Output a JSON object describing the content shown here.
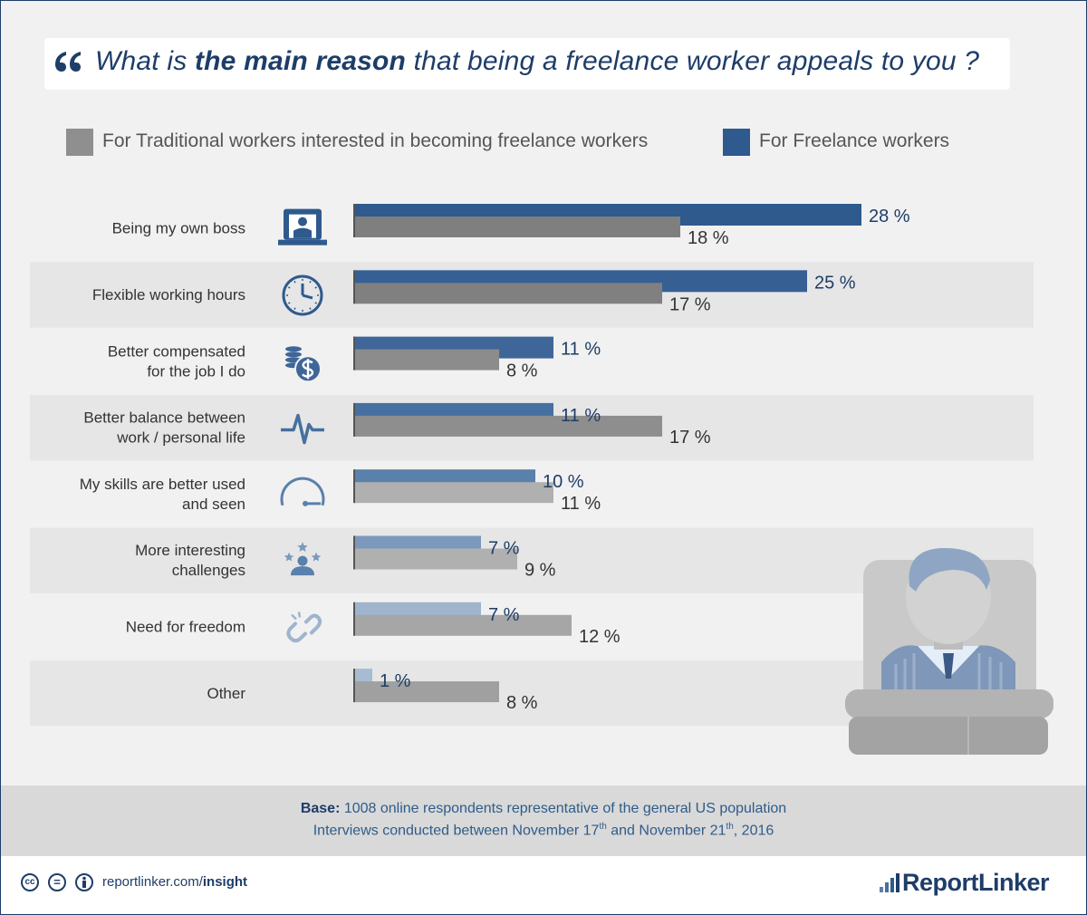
{
  "title": {
    "pre": "What is ",
    "bold": "the main reason",
    "post": " that being a freelance worker appeals to you ?"
  },
  "legend": {
    "traditional": "For Traditional workers interested in becoming freelance workers",
    "freelance": "For Freelance workers"
  },
  "colors": {
    "title": "#1e3d68",
    "row_band": "#e6e6e6",
    "freelance_shades": [
      "#2e5a8e",
      "#365f94",
      "#3f6699",
      "#46709f",
      "#5a80ac",
      "#7b98bd",
      "#9fb4cd",
      "#a7bbd2"
    ],
    "traditional_shades": [
      "#7f7f7f",
      "#808080",
      "#8c8c8c",
      "#8e8e8e",
      "#b0b0b0",
      "#b0b0b0",
      "#a6a6a6",
      "#a0a0a0"
    ]
  },
  "chart_data": {
    "type": "bar",
    "orientation": "horizontal",
    "categories": [
      "Being my own boss",
      "Flexible working hours",
      "Better compensated\nfor the job I do",
      "Better balance between\nwork / personal life ",
      "My skills are better used\nand seen",
      "More interesting\nchallenges",
      "Need for freedom",
      "Other"
    ],
    "category_icons": [
      "desk-boss-icon",
      "clock-icon",
      "coins-dollar-icon",
      "heartbeat-icon",
      "gauge-icon",
      "stars-person-icon",
      "broken-chain-icon",
      ""
    ],
    "series": [
      {
        "name": "For Freelance workers",
        "values": [
          28,
          25,
          11,
          11,
          10,
          7,
          7,
          1
        ]
      },
      {
        "name": "For Traditional workers interested in becoming freelance workers",
        "values": [
          18,
          17,
          8,
          17,
          11,
          9,
          12,
          8
        ]
      }
    ],
    "value_suffix": " %",
    "xlim": [
      0,
      28
    ]
  },
  "base": {
    "label": "Base:",
    "text": " 1008 online respondents representative of the general US population",
    "line2_a": "Interviews conducted between November 17",
    "sup1": "th",
    "line2_b": " and November 21",
    "sup2": "th",
    "line2_c": ", 2016"
  },
  "footer": {
    "cc1": "cc",
    "cc2": "=",
    "link_a": "reportlinker.com/",
    "link_b": "insight",
    "brand": "ReportLinker"
  }
}
